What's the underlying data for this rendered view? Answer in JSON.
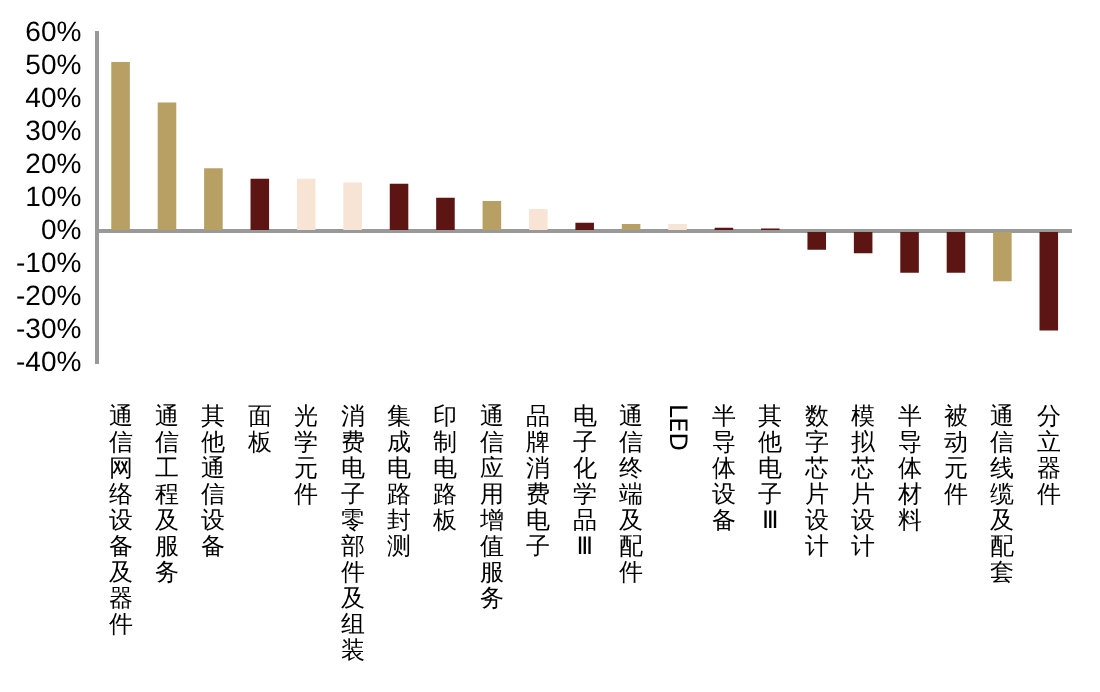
{
  "chart_data": {
    "type": "bar",
    "categories": [
      "通信网络设备及器件",
      "通信工程及服务",
      "其他通信设备",
      "面板",
      "光学元件",
      "消费电子零部件及组装",
      "集成电路封测",
      "印制电路板",
      "通信应用增值服务",
      "品牌消费电子",
      "电子化学品Ⅲ",
      "通信终端及配件",
      "LED",
      "半导体设备",
      "其他电子Ⅲ",
      "数字芯片设计",
      "模拟芯片设计",
      "半导体材料",
      "被动元件",
      "通信线缆及配套",
      "分立器件"
    ],
    "values": [
      51.2,
      38.9,
      19,
      15.8,
      15.8,
      14.7,
      14.3,
      10.1,
      9.1,
      6.7,
      2.5,
      2.1,
      2.1,
      1,
      0.8,
      -5.7,
      -6.7,
      -12.6,
      -12.6,
      -15.2,
      -30.1
    ],
    "colors": [
      "#b89f63",
      "#b89f63",
      "#b89f63",
      "#5c1513",
      "#f8e4d4",
      "#f8e4d4",
      "#5c1513",
      "#5c1513",
      "#b89f63",
      "#f8e4d4",
      "#5c1513",
      "#b89f63",
      "#f8e4d4",
      "#5c1513",
      "#5c1513",
      "#5c1513",
      "#5c1513",
      "#5c1513",
      "#5c1513",
      "#b89f63",
      "#5c1513"
    ],
    "ylim": [
      -40,
      60
    ],
    "yticks": [
      {
        "value": -40,
        "label": "-40%"
      },
      {
        "value": -30,
        "label": "-30%"
      },
      {
        "value": -20,
        "label": "-20%"
      },
      {
        "value": -10,
        "label": "-10%"
      },
      {
        "value": 0,
        "label": "0%"
      },
      {
        "value": 10,
        "label": "10%"
      },
      {
        "value": 20,
        "label": "20%"
      },
      {
        "value": 30,
        "label": "30%"
      },
      {
        "value": 40,
        "label": "40%"
      },
      {
        "value": 50,
        "label": "50%"
      },
      {
        "value": 60,
        "label": "60%"
      }
    ],
    "ref_lines": [
      {
        "axis": "y",
        "value": 0,
        "color": "#999999"
      }
    ],
    "grid": false,
    "legend": false
  }
}
